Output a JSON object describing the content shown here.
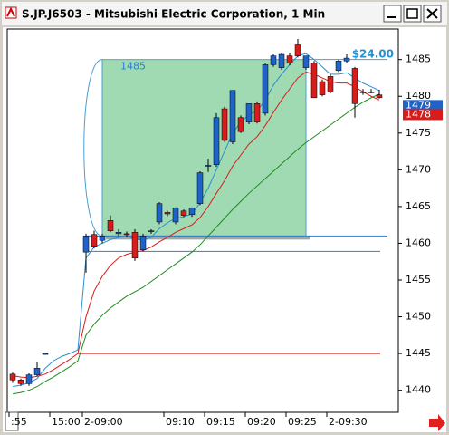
{
  "window": {
    "title": "S.JP.J6503 - Mitsubishi Electric Corporation, 1 Min"
  },
  "chart_data": {
    "type": "candlestick",
    "categories": [
      ":55",
      null,
      null,
      null,
      null,
      "15:00",
      null,
      null,
      null,
      "2-09:00",
      null,
      null,
      null,
      null,
      null,
      null,
      null,
      null,
      null,
      "09:10",
      null,
      null,
      null,
      null,
      "09:15",
      null,
      null,
      null,
      null,
      "09:20",
      null,
      null,
      null,
      null,
      "09:25",
      null,
      null,
      null,
      null,
      "2-09:30",
      null,
      null,
      null,
      null,
      null,
      null
    ],
    "open": [
      1442.2,
      1441.4,
      1440.9,
      1442.1,
      1445.0,
      null,
      null,
      null,
      null,
      1458.8,
      1461.2,
      1460.4,
      1463.1,
      1461.3,
      1461.3,
      1461.5,
      1459.1,
      1461.6,
      1462.9,
      1464.2,
      1462.9,
      1464.4,
      1463.9,
      1465.4,
      1470.6,
      1470.7,
      1478.3,
      1473.8,
      1477.1,
      1476.5,
      1479.0,
      1477.7,
      1484.3,
      1483.9,
      1485.5,
      1487.0,
      1483.9,
      1484.5,
      1482.0,
      1482.7,
      1483.5,
      1484.8,
      1483.8,
      1480.6,
      1480.6,
      1480.2
    ],
    "high": [
      1442.4,
      1441.6,
      1442.3,
      1443.8,
      1445.1,
      null,
      null,
      null,
      null,
      1461.3,
      1461.7,
      1461.3,
      1463.8,
      1461.9,
      1461.6,
      1461.9,
      1461.3,
      1461.9,
      1465.6,
      1464.4,
      1464.9,
      1464.6,
      1464.9,
      1469.8,
      1471.5,
      1477.7,
      1478.6,
      1480.8,
      1477.4,
      1479.0,
      1479.3,
      1484.5,
      1485.7,
      1485.9,
      1485.9,
      1487.8,
      1485.5,
      1484.8,
      1482.3,
      1483.0,
      1485.0,
      1485.7,
      1484.0,
      1481.0,
      1481.0,
      1480.9
    ],
    "low": [
      1441.0,
      1440.6,
      1440.6,
      1441.9,
      1444.9,
      null,
      null,
      null,
      null,
      1456.0,
      1459.3,
      1460.0,
      1461.5,
      1461.0,
      1460.9,
      1457.6,
      1458.9,
      1461.3,
      1462.6,
      1463.7,
      1462.6,
      1463.6,
      1463.6,
      1465.2,
      1469.7,
      1470.4,
      1473.8,
      1473.5,
      1475.0,
      1476.2,
      1476.3,
      1477.4,
      1484.0,
      1483.6,
      1484.2,
      1485.3,
      1483.6,
      1479.8,
      1480.0,
      1480.4,
      1483.3,
      1484.5,
      1477.1,
      1480.2,
      1480.4,
      1479.7
    ],
    "close": [
      1441.4,
      1440.9,
      1442.1,
      1443.0,
      1445.0,
      null,
      null,
      null,
      null,
      1461.0,
      1459.6,
      1461.0,
      1461.7,
      1461.5,
      1461.2,
      1458.0,
      1461.0,
      1461.7,
      1465.4,
      1464.0,
      1464.8,
      1463.8,
      1464.8,
      1469.6,
      1470.6,
      1477.1,
      1474.0,
      1480.8,
      1475.2,
      1479.0,
      1476.5,
      1484.3,
      1485.5,
      1485.7,
      1484.5,
      1485.5,
      1485.5,
      1479.8,
      1480.2,
      1480.6,
      1484.8,
      1485.2,
      1479.0,
      1480.6,
      1480.6,
      1479.8
    ],
    "up_color": "#1f63c8",
    "down_color": "#d81c1c",
    "moving_averages": [
      {
        "color": "#2a8fd0",
        "values": [
          1440.5,
          1440.7,
          1441.0,
          1441.6,
          1443.0,
          1444.0,
          1444.6,
          1445.0,
          1445.5,
          1458.0,
          1459.5,
          1460.0,
          1460.5,
          1460.8,
          1461.0,
          1460.6,
          1460.4,
          1460.8,
          1462.0,
          1462.8,
          1463.4,
          1463.6,
          1464.0,
          1465.5,
          1467.5,
          1470.0,
          1472.5,
          1475.0,
          1476.5,
          1477.5,
          1478.0,
          1479.5,
          1481.5,
          1483.0,
          1484.3,
          1485.5,
          1485.8,
          1485.0,
          1484.0,
          1483.0,
          1483.0,
          1483.2,
          1482.5,
          1481.8,
          1481.3,
          1480.8
        ]
      },
      {
        "color": "#d81c1c",
        "values": [
          1442.0,
          1441.8,
          1441.7,
          1441.9,
          1442.2,
          1442.8,
          1443.5,
          1444.2,
          1445.0,
          1450.0,
          1453.5,
          1455.5,
          1457.0,
          1458.0,
          1458.5,
          1458.8,
          1459.0,
          1459.5,
          1460.2,
          1460.8,
          1461.5,
          1462.0,
          1462.5,
          1463.5,
          1465.0,
          1466.8,
          1468.5,
          1470.5,
          1472.0,
          1473.5,
          1474.5,
          1476.0,
          1477.8,
          1479.5,
          1481.0,
          1482.5,
          1483.3,
          1483.0,
          1482.5,
          1482.0,
          1481.8,
          1481.8,
          1481.3,
          1480.6,
          1480.0,
          1479.5
        ]
      },
      {
        "color": "#1e8a1e",
        "values": [
          1439.5,
          1439.7,
          1440.0,
          1440.5,
          1441.2,
          1441.8,
          1442.5,
          1443.2,
          1444.0,
          1447.5,
          1449.0,
          1450.2,
          1451.2,
          1452.0,
          1452.8,
          1453.4,
          1454.0,
          1454.8,
          1455.6,
          1456.4,
          1457.2,
          1458.0,
          1458.8,
          1459.8,
          1461.0,
          1462.2,
          1463.4,
          1464.6,
          1465.7,
          1466.8,
          1467.8,
          1468.8,
          1469.8,
          1470.8,
          1471.8,
          1472.8,
          1473.7,
          1474.5,
          1475.3,
          1476.1,
          1476.9,
          1477.7,
          1478.5,
          1479.2,
          1479.8,
          1480.3
        ]
      }
    ],
    "levels": [
      {
        "value": 1461,
        "color": "#2a7fd0"
      },
      {
        "value": 1458.9,
        "color": "#2a7fd0"
      },
      {
        "value": 1445,
        "color": "#d81c1c"
      }
    ],
    "box": {
      "top": 1485,
      "bottom": 1461,
      "color": "#8fd3a6"
    },
    "price_tags": [
      {
        "value": 1479,
        "color": "#1f63c8"
      },
      {
        "value": 1478,
        "color": "#d81c1c"
      }
    ],
    "annotation": "$24.00",
    "ylim": [
      1437,
      1489.4
    ],
    "yticks": [
      1440,
      1445,
      1450,
      1455,
      1460,
      1465,
      1470,
      1475,
      1480,
      1485
    ]
  }
}
